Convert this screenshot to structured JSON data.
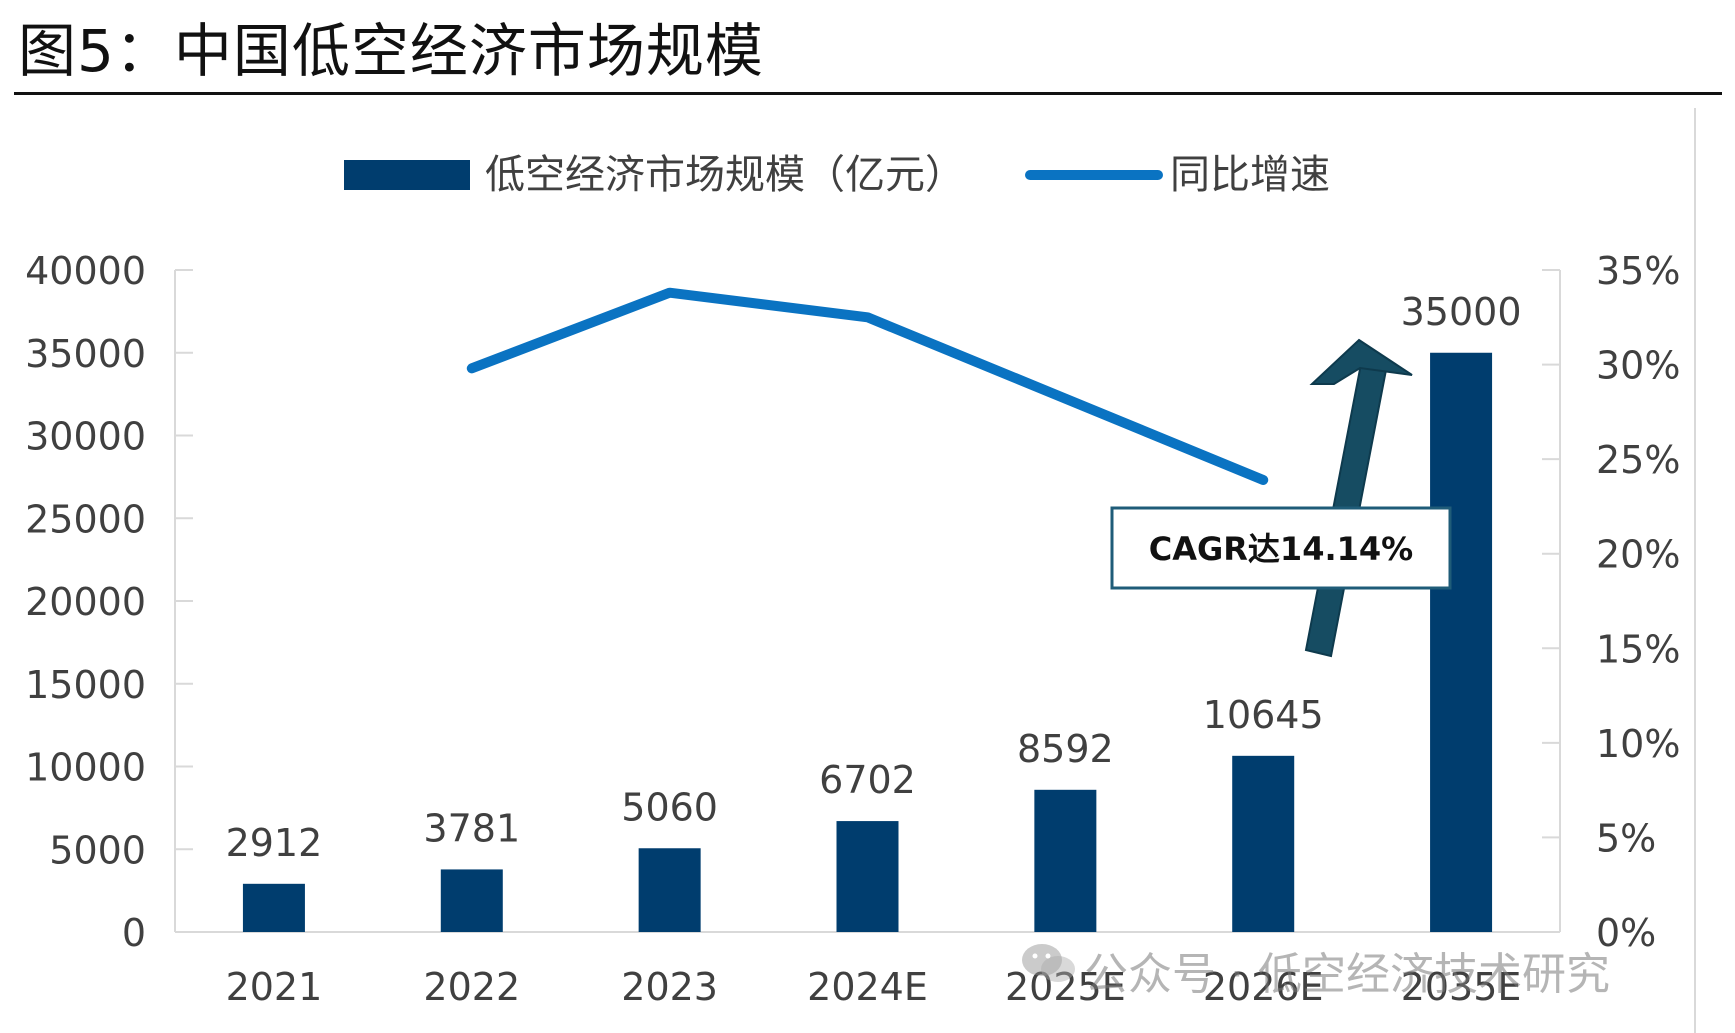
{
  "figure_title": "图5：中国低空经济市场规模",
  "watermark": "公众号 · 低空经济技术研究",
  "colors": {
    "bar": "#003D6E",
    "line": "#0A73C2",
    "axis": "#d9d9d9",
    "annotation_border": "#1f5c78",
    "arrow": "#164c62"
  },
  "annotation": {
    "text": "CAGR达14.14%"
  },
  "chart_data": {
    "type": "bar",
    "categories": [
      "2021",
      "2022",
      "2023",
      "2024E",
      "2025E",
      "2026E",
      "2035E"
    ],
    "series": [
      {
        "name": "低空经济市场规模（亿元）",
        "type": "bar",
        "axis": "left",
        "values": [
          2912,
          3781,
          5060,
          6702,
          8592,
          10645,
          35000
        ],
        "labels": [
          "2912",
          "3781",
          "5060",
          "6702",
          "8592",
          "10645",
          "35000"
        ]
      },
      {
        "name": "同比增速",
        "type": "line",
        "axis": "right",
        "values": [
          null,
          29.8,
          33.8,
          32.5,
          28.2,
          23.9,
          null
        ]
      }
    ],
    "y_left": {
      "min": 0,
      "max": 40000,
      "ticks": [
        0,
        5000,
        10000,
        15000,
        20000,
        25000,
        30000,
        35000,
        40000
      ]
    },
    "y_right": {
      "min": 0,
      "max": 35,
      "ticks": [
        "0%",
        "5%",
        "10%",
        "15%",
        "20%",
        "25%",
        "30%",
        "35%"
      ]
    },
    "legend": {
      "position": "top",
      "items": [
        "低空经济市场规模（亿元）",
        "同比增速"
      ]
    },
    "grid": false
  }
}
